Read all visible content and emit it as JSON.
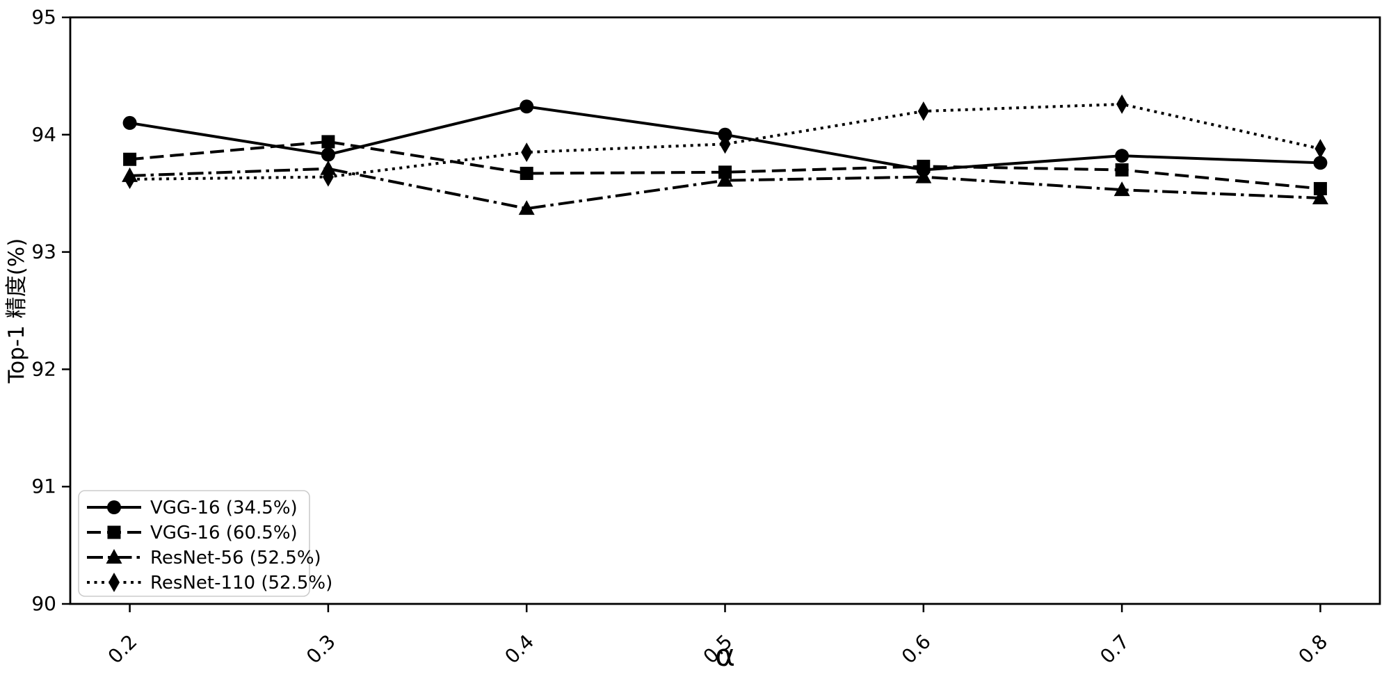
{
  "chart_data": {
    "type": "line",
    "title": "",
    "xlabel": "α",
    "ylabel": "Top-1 精度(%)",
    "x": [
      0.2,
      0.3,
      0.4,
      0.5,
      0.6,
      0.7,
      0.8
    ],
    "x_tick_labels": [
      "0.2",
      "0.3",
      "0.4",
      "0.5",
      "0.6",
      "0.7",
      "0.8"
    ],
    "y_ticks": [
      90,
      91,
      92,
      93,
      94,
      95
    ],
    "xlim": [
      0.17,
      0.83
    ],
    "ylim": [
      90,
      95
    ],
    "grid": false,
    "legend_position": "lower-left",
    "line_color": "#000000",
    "legend_border_color": "#cccccc",
    "series": [
      {
        "name": "VGG-16 (34.5%)",
        "line_style": "solid",
        "marker": "circle",
        "values": [
          94.1,
          93.83,
          94.24,
          94.0,
          93.7,
          93.82,
          93.76
        ]
      },
      {
        "name": "VGG-16 (60.5%)",
        "line_style": "dashed",
        "marker": "square",
        "values": [
          93.79,
          93.94,
          93.67,
          93.68,
          93.73,
          93.7,
          93.54
        ]
      },
      {
        "name": "ResNet-56 (52.5%)",
        "line_style": "dashdot",
        "marker": "triangle",
        "values": [
          93.65,
          93.71,
          93.37,
          93.61,
          93.64,
          93.53,
          93.46
        ]
      },
      {
        "name": "ResNet-110 (52.5%)",
        "line_style": "dotted",
        "marker": "diamond",
        "values": [
          93.62,
          93.64,
          93.85,
          93.92,
          94.2,
          94.26,
          93.88
        ]
      }
    ]
  }
}
